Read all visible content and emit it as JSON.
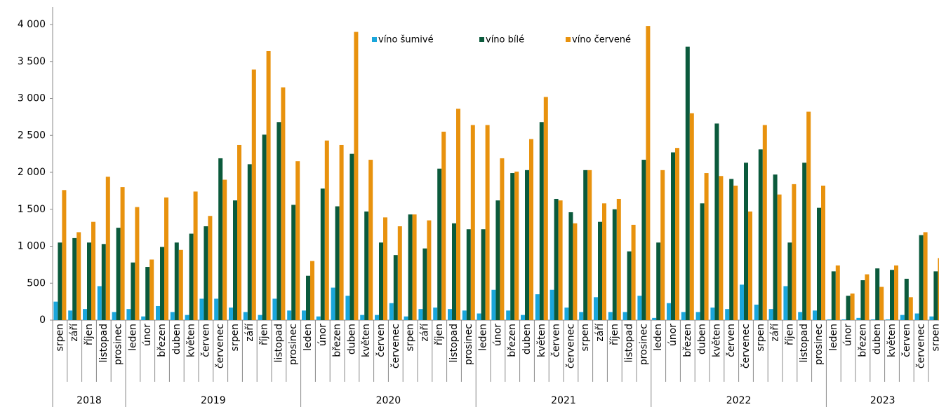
{
  "chart_data": {
    "type": "bar",
    "groups": [
      {
        "name": "2018",
        "categories": [
          "srpen",
          "září",
          "říjen",
          "listopad",
          "prosinec"
        ]
      },
      {
        "name": "2019",
        "categories": [
          "leden",
          "únor",
          "březen",
          "duben",
          "květen",
          "červen",
          "červenec",
          "srpen",
          "září",
          "říjen",
          "listopad",
          "prosinec"
        ]
      },
      {
        "name": "2020",
        "categories": [
          "leden",
          "únor",
          "březen",
          "duben",
          "květen",
          "červen",
          "červenec",
          "srpen",
          "září",
          "říjen",
          "listopad",
          "prosinec"
        ]
      },
      {
        "name": "2021",
        "categories": [
          "leden",
          "únor",
          "březen",
          "duben",
          "květen",
          "červen",
          "červenec",
          "srpen",
          "září",
          "říjen",
          "listopad",
          "prosinec"
        ]
      },
      {
        "name": "2022",
        "categories": [
          "leden",
          "únor",
          "březen",
          "duben",
          "květen",
          "červen",
          "červenec",
          "srpen",
          "září",
          "říjen",
          "listopad",
          "prosinec"
        ]
      },
      {
        "name": "2023",
        "categories": [
          "leden",
          "únor",
          "březen",
          "duben",
          "květen",
          "červen",
          "červenec",
          "srpen"
        ]
      }
    ],
    "series": [
      {
        "name": "víno šumivé",
        "color": "#1aa6db",
        "values": [
          250,
          130,
          150,
          460,
          110,
          150,
          50,
          190,
          110,
          70,
          290,
          290,
          170,
          110,
          70,
          290,
          130,
          130,
          50,
          440,
          330,
          70,
          70,
          230,
          50,
          150,
          170,
          150,
          130,
          90,
          410,
          130,
          70,
          350,
          410,
          170,
          110,
          310,
          110,
          110,
          330,
          30,
          230,
          110,
          110,
          170,
          150,
          480,
          210,
          150,
          460,
          110,
          130,
          10,
          10,
          30,
          10,
          10,
          70,
          90,
          50
        ]
      },
      {
        "name": "víno bílé",
        "color": "#0b5a3c",
        "values": [
          1050,
          1110,
          1050,
          1030,
          1250,
          780,
          720,
          990,
          1050,
          1170,
          1270,
          2190,
          1620,
          2110,
          2510,
          2680,
          1560,
          600,
          1780,
          1540,
          2250,
          1470,
          1050,
          880,
          1430,
          970,
          2050,
          1310,
          1230,
          1230,
          1620,
          1990,
          2030,
          2680,
          1640,
          1460,
          2030,
          1330,
          1500,
          930,
          2170,
          1050,
          2270,
          3700,
          1580,
          2660,
          1910,
          2130,
          2310,
          1970,
          1050,
          2130,
          1520,
          660,
          330,
          540,
          700,
          680,
          560,
          1150,
          660
        ]
      },
      {
        "name": "víno červené",
        "color": "#e8920e",
        "values": [
          1760,
          1190,
          1330,
          1940,
          1800,
          1530,
          820,
          1660,
          950,
          1740,
          1410,
          1900,
          2370,
          3390,
          3640,
          3150,
          2150,
          800,
          2430,
          2370,
          3900,
          2170,
          1390,
          1270,
          1430,
          1350,
          2550,
          2860,
          2640,
          2640,
          2190,
          2010,
          2450,
          3020,
          1620,
          1310,
          2030,
          1580,
          1640,
          1290,
          3980,
          2030,
          2330,
          2800,
          1990,
          1950,
          1820,
          1470,
          2640,
          1700,
          1840,
          2820,
          1820,
          740,
          360,
          620,
          450,
          740,
          310,
          1190,
          840
        ]
      }
    ],
    "ylim": [
      0,
      4000
    ],
    "yticks": [
      0,
      {
        "value": 500,
        "label": "500"
      },
      {
        "value": 1000,
        "label": "1 000"
      },
      {
        "value": 1500,
        "label": "1 500"
      },
      {
        "value": 2000,
        "label": "2 000"
      },
      {
        "value": 2500,
        "label": "2 500"
      },
      {
        "value": 3000,
        "label": "3 000"
      },
      {
        "value": 3500,
        "label": "3 500"
      },
      {
        "value": 4000,
        "label": "4 000"
      }
    ],
    "grid": false
  }
}
